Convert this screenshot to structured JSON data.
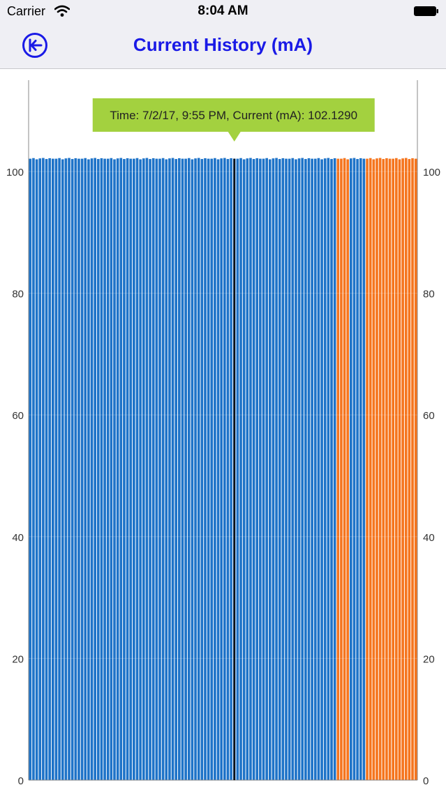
{
  "status_bar": {
    "carrier": "Carrier",
    "time": "8:04 AM",
    "wifi_icon": "wifi-icon",
    "battery_icon": "battery-full-icon"
  },
  "nav": {
    "back_icon": "circle-arrow-left-icon",
    "title": "Current History (mA)"
  },
  "colors": {
    "accent": "#1a1ae6",
    "bar_blue": "#1e73c8",
    "bar_orange": "#f5751e",
    "tooltip_bg": "#a3d13f",
    "highlight_line": "#111111"
  },
  "chart_data": {
    "type": "bar",
    "title": "",
    "xlabel": "",
    "ylabel": "",
    "ylim": [
      0,
      115
    ],
    "yticks": [
      0,
      20,
      40,
      60,
      80,
      100
    ],
    "grid": true,
    "bar_count": 120,
    "orange_ranges": [
      [
        95,
        98
      ],
      [
        104,
        119
      ]
    ],
    "default_value": 102.1,
    "value_variation": [
      0,
      0.1,
      -0.1,
      0.05,
      0.12,
      -0.05,
      0.08,
      0
    ],
    "highlight_index": 63,
    "tooltip": "Time: 7/2/17, 9:55 PM, Current (mA): 102.1290"
  }
}
